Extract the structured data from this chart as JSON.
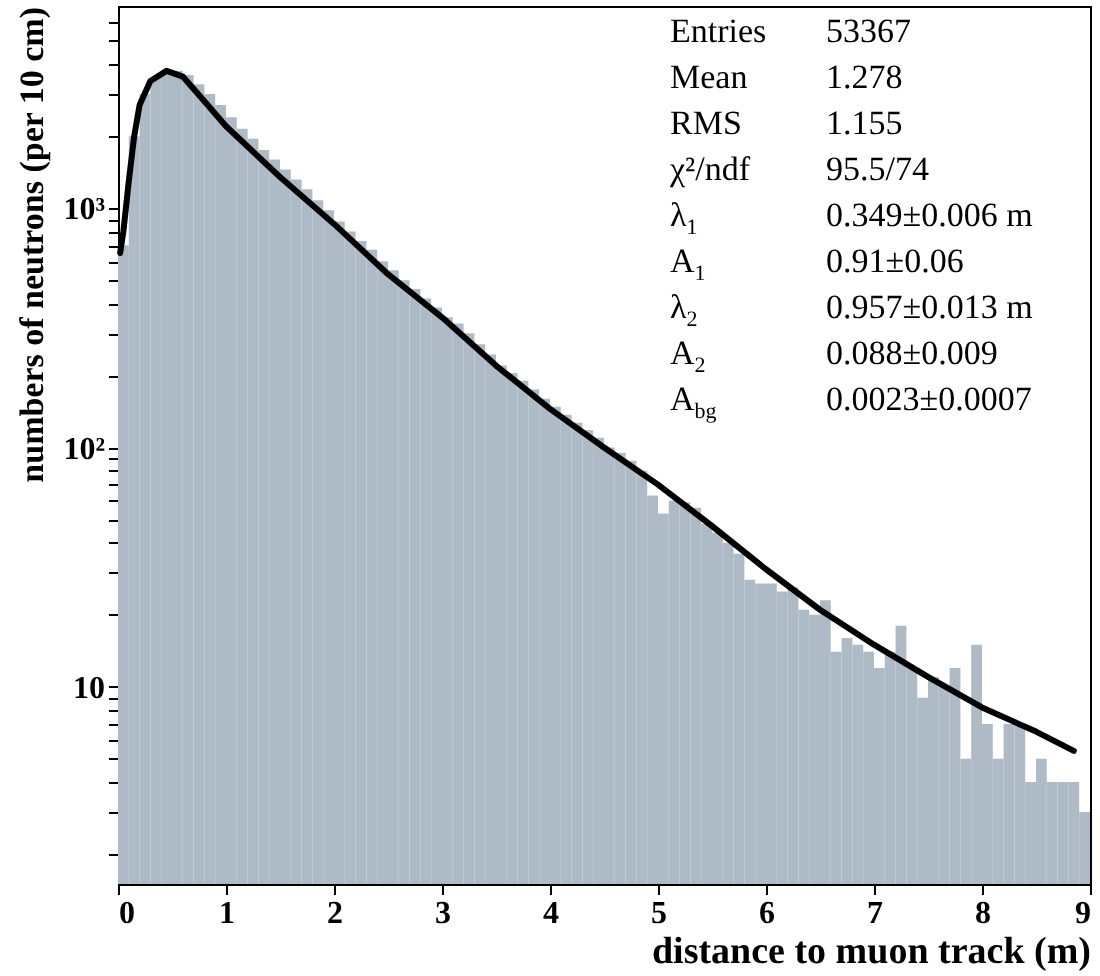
{
  "chart_data": {
    "type": "histogram",
    "xlabel": "distance to muon track (m)",
    "ylabel": "numbers of neutrons (per 10 cm)",
    "bins": [
      0,
      0.1,
      0.2,
      0.3,
      0.4,
      0.5,
      0.6,
      0.7,
      0.8,
      0.9,
      1,
      1.1,
      1.2,
      1.3,
      1.4,
      1.5,
      1.6,
      1.7,
      1.8,
      1.9,
      2,
      2.1,
      2.2,
      2.3,
      2.4,
      2.5,
      2.6,
      2.7,
      2.8,
      2.9,
      3,
      3.1,
      3.2,
      3.3,
      3.4,
      3.5,
      3.6,
      3.7,
      3.8,
      3.9,
      4,
      4.1,
      4.2,
      4.3,
      4.4,
      4.5,
      4.6,
      4.7,
      4.8,
      4.9,
      5,
      5.1,
      5.2,
      5.3,
      5.4,
      5.5,
      5.6,
      5.7,
      5.8,
      5.9,
      6,
      6.1,
      6.2,
      6.3,
      6.4,
      6.5,
      6.6,
      6.7,
      6.8,
      6.9,
      7,
      7.1,
      7.2,
      7.3,
      7.4,
      7.5,
      7.6,
      7.7,
      7.8,
      7.9,
      8,
      8.1,
      8.2,
      8.3,
      8.4,
      8.5,
      8.6,
      8.7,
      8.8,
      8.9,
      9
    ],
    "series": [
      {
        "color": "#aebbc7",
        "values": [
          700,
          2000,
          3000,
          3500,
          3750,
          3750,
          3600,
          3300,
          3000,
          2700,
          2400,
          2150,
          1950,
          1750,
          1600,
          1450,
          1320,
          1200,
          1080,
          980,
          880,
          800,
          730,
          670,
          600,
          550,
          500,
          460,
          420,
          385,
          350,
          330,
          300,
          270,
          245,
          220,
          205,
          190,
          175,
          160,
          148,
          137,
          127,
          118,
          110,
          100,
          95,
          88,
          80,
          63,
          53,
          60,
          59,
          56,
          48,
          44,
          40,
          36,
          28,
          27,
          27,
          25,
          26,
          21,
          20,
          23,
          14,
          16,
          15,
          14,
          12,
          14,
          18,
          12,
          9,
          11,
          10,
          12,
          5,
          15,
          7,
          5,
          7,
          7,
          4,
          5,
          4,
          4,
          4,
          3
        ]
      },
      {
        "type": "line",
        "color": "#000000",
        "x": [
          0.02,
          0.05,
          0.1,
          0.15,
          0.2,
          0.3,
          0.45,
          0.6,
          0.8,
          1.0,
          1.5,
          2.0,
          2.5,
          3.0,
          3.5,
          4.0,
          4.5,
          5.0,
          5.5,
          6.0,
          6.5,
          7.0,
          7.5,
          8.0,
          8.5,
          8.85
        ],
        "values": [
          650,
          800,
          1300,
          2000,
          2700,
          3400,
          3750,
          3550,
          2800,
          2200,
          1350,
          860,
          530,
          350,
          220,
          145,
          100,
          70,
          47,
          31,
          21,
          15,
          11,
          8.2,
          6.5,
          5.4
        ]
      }
    ],
    "xlim": [
      0,
      9
    ],
    "xticks": [
      0,
      1,
      2,
      3,
      4,
      5,
      6,
      7,
      8,
      9
    ],
    "ylim": [
      1.5,
      7000
    ],
    "log": true,
    "yticks": [
      {
        "value": 2,
        "label": null
      },
      {
        "value": 3,
        "label": null
      },
      {
        "value": 4,
        "label": null
      },
      {
        "value": 5,
        "label": null
      },
      {
        "value": 6,
        "label": null
      },
      {
        "value": 7,
        "label": null
      },
      {
        "value": 8,
        "label": null
      },
      {
        "value": 9,
        "label": null
      },
      10,
      {
        "value": 20,
        "label": null
      },
      {
        "value": 30,
        "label": null
      },
      {
        "value": 40,
        "label": null
      },
      {
        "value": 50,
        "label": null
      },
      {
        "value": 60,
        "label": null
      },
      {
        "value": 70,
        "label": null
      },
      {
        "value": 80,
        "label": null
      },
      {
        "value": 90,
        "label": null
      },
      {
        "value": 100,
        "label": "10²"
      },
      {
        "value": 200,
        "label": null
      },
      {
        "value": 300,
        "label": null
      },
      {
        "value": 400,
        "label": null
      },
      {
        "value": 500,
        "label": null
      },
      {
        "value": 600,
        "label": null
      },
      {
        "value": 700,
        "label": null
      },
      {
        "value": 800,
        "label": null
      },
      {
        "value": 900,
        "label": null
      },
      {
        "value": 1000,
        "label": "10³"
      },
      {
        "value": 2000,
        "label": null
      },
      {
        "value": 3000,
        "label": null
      },
      {
        "value": 4000,
        "label": null
      },
      {
        "value": 5000,
        "label": null
      },
      {
        "value": 6000,
        "label": null
      }
    ],
    "annotations": [
      "Entries 53367",
      "Mean 1.278",
      "RMS 1.155",
      "χ²/ndf 95.5/74",
      "λ$_{1}$ 0.349±0.006 m",
      "A$_{1}$ 0.91±0.06",
      "λ$_{2}$ 0.957±0.013 m",
      "A$_{2}$ 0.088±0.009",
      "A$_{bg}$ 0.0023±0.0007"
    ],
    "marker": "none"
  }
}
